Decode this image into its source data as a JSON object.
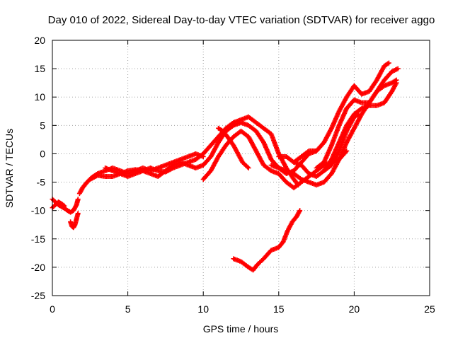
{
  "chart_data": {
    "type": "scatter",
    "title": "Day 010 of 2022, Sidereal Day-to-day VTEC variation (SDTVAR) for receiver aggo",
    "xlabel": "GPS time / hours",
    "ylabel": "SDTVAR / TECUs",
    "xlim": [
      0,
      25
    ],
    "ylim": [
      -25,
      20
    ],
    "x_ticks": [
      0,
      5,
      10,
      15,
      20,
      25
    ],
    "y_ticks": [
      -25,
      -20,
      -15,
      -10,
      -5,
      0,
      5,
      10,
      15,
      20
    ],
    "x_tick_labels": [
      "0",
      "5",
      "10",
      "15",
      "20",
      "25"
    ],
    "y_tick_labels": [
      "-25",
      "-20",
      "-15",
      "-10",
      "-5",
      "0",
      "5",
      "10",
      "15",
      "20"
    ],
    "grid": true,
    "marker": "+",
    "colors": {
      "series": "#ff0000",
      "grid": "#a0a0a0",
      "axis": "#000000"
    },
    "series": [
      {
        "points": [
          [
            0.0,
            -8.0
          ],
          [
            0.2,
            -8.5
          ],
          [
            0.4,
            -9.0
          ],
          [
            0.6,
            -9.3
          ],
          [
            0.8,
            -9.6
          ],
          [
            1.0,
            -10.0
          ],
          [
            1.2,
            -10.3
          ],
          [
            1.4,
            -10.0
          ],
          [
            1.6,
            -9.0
          ],
          [
            1.7,
            -8.0
          ]
        ]
      },
      {
        "points": [
          [
            0.0,
            -9.5
          ],
          [
            0.2,
            -9.0
          ],
          [
            0.4,
            -8.5
          ],
          [
            0.6,
            -8.8
          ],
          [
            0.8,
            -9.2
          ]
        ]
      },
      {
        "points": [
          [
            1.2,
            -12.0
          ],
          [
            1.3,
            -12.8
          ],
          [
            1.4,
            -13.0
          ],
          [
            1.5,
            -12.5
          ],
          [
            1.6,
            -11.5
          ],
          [
            1.7,
            -10.5
          ]
        ]
      },
      {
        "points": [
          [
            1.8,
            -7.0
          ],
          [
            2.0,
            -6.0
          ],
          [
            2.3,
            -5.0
          ],
          [
            2.6,
            -4.2
          ],
          [
            3.0,
            -3.5
          ],
          [
            3.5,
            -3.0
          ],
          [
            4.0,
            -2.5
          ],
          [
            4.5,
            -3.0
          ],
          [
            5.0,
            -3.5
          ],
          [
            5.5,
            -3.0
          ],
          [
            6.0,
            -2.5
          ],
          [
            6.5,
            -3.0
          ],
          [
            7.0,
            -2.5
          ],
          [
            7.5,
            -2.0
          ],
          [
            8.0,
            -1.5
          ],
          [
            8.5,
            -1.0
          ],
          [
            9.0,
            -0.5
          ],
          [
            9.5,
            0.0
          ],
          [
            10.0,
            -0.5
          ]
        ]
      },
      {
        "points": [
          [
            2.5,
            -4.5
          ],
          [
            3.0,
            -3.8
          ],
          [
            3.5,
            -4.0
          ],
          [
            4.0,
            -4.0
          ],
          [
            4.5,
            -3.5
          ],
          [
            5.0,
            -3.0
          ],
          [
            5.5,
            -2.8
          ],
          [
            6.0,
            -3.0
          ],
          [
            6.5,
            -2.5
          ],
          [
            7.0,
            -3.0
          ],
          [
            7.5,
            -3.2
          ],
          [
            8.0,
            -2.5
          ],
          [
            8.5,
            -2.0
          ],
          [
            9.0,
            -1.5
          ],
          [
            9.5,
            -1.0
          ],
          [
            10.0,
            0.0
          ],
          [
            10.5,
            1.5
          ],
          [
            11.0,
            3.0
          ],
          [
            11.5,
            4.5
          ],
          [
            12.0,
            5.5
          ],
          [
            12.5,
            6.0
          ],
          [
            13.0,
            6.5
          ],
          [
            13.5,
            5.5
          ],
          [
            14.0,
            4.5
          ],
          [
            14.5,
            3.5
          ],
          [
            15.0,
            0.0
          ],
          [
            15.5,
            -2.5
          ],
          [
            16.0,
            -4.5
          ],
          [
            16.3,
            -5.5
          ]
        ]
      },
      {
        "points": [
          [
            3.5,
            -2.5
          ],
          [
            4.0,
            -3.0
          ],
          [
            4.5,
            -3.5
          ],
          [
            5.0,
            -4.0
          ],
          [
            5.5,
            -3.5
          ],
          [
            6.0,
            -3.0
          ],
          [
            6.5,
            -3.5
          ],
          [
            7.0,
            -4.0
          ],
          [
            7.5,
            -3.0
          ],
          [
            8.0,
            -2.0
          ],
          [
            8.5,
            -1.5
          ],
          [
            9.0,
            -2.0
          ],
          [
            9.5,
            -2.5
          ],
          [
            10.0,
            -2.0
          ],
          [
            10.5,
            -0.5
          ],
          [
            11.0,
            2.0
          ],
          [
            11.5,
            4.0
          ],
          [
            12.0,
            5.0
          ],
          [
            12.5,
            5.5
          ],
          [
            13.0,
            5.0
          ],
          [
            13.5,
            4.0
          ],
          [
            14.0,
            2.0
          ],
          [
            14.5,
            -1.0
          ],
          [
            15.0,
            -2.5
          ],
          [
            15.5,
            -3.5
          ],
          [
            16.0,
            -3.0
          ],
          [
            16.5,
            -1.5
          ],
          [
            17.0,
            0.0
          ],
          [
            17.5,
            0.5
          ]
        ]
      },
      {
        "points": [
          [
            10.0,
            -4.5
          ],
          [
            10.5,
            -3.0
          ],
          [
            11.0,
            -0.5
          ],
          [
            11.5,
            1.5
          ],
          [
            12.0,
            3.0
          ],
          [
            12.5,
            4.0
          ],
          [
            13.0,
            3.0
          ],
          [
            13.5,
            0.5
          ],
          [
            14.0,
            -2.0
          ],
          [
            14.5,
            -3.0
          ],
          [
            15.0,
            -3.5
          ],
          [
            15.5,
            -5.0
          ],
          [
            16.0,
            -6.0
          ],
          [
            16.5,
            -5.0
          ],
          [
            17.0,
            -4.0
          ],
          [
            17.5,
            -3.0
          ],
          [
            18.0,
            -2.0
          ],
          [
            18.5,
            -1.5
          ],
          [
            19.0,
            -1.0
          ],
          [
            19.5,
            0.5
          ]
        ]
      },
      {
        "points": [
          [
            11.0,
            4.5
          ],
          [
            11.3,
            4.0
          ],
          [
            11.6,
            3.0
          ],
          [
            12.0,
            1.5
          ],
          [
            12.3,
            0.0
          ],
          [
            12.6,
            -1.5
          ],
          [
            13.0,
            -2.5
          ]
        ]
      },
      {
        "points": [
          [
            12.0,
            -18.5
          ],
          [
            12.5,
            -19.0
          ],
          [
            13.0,
            -20.0
          ],
          [
            13.3,
            -20.5
          ],
          [
            13.6,
            -19.5
          ],
          [
            14.0,
            -18.5
          ],
          [
            14.5,
            -17.0
          ],
          [
            15.0,
            -16.5
          ],
          [
            15.3,
            -15.5
          ],
          [
            15.6,
            -13.5
          ],
          [
            15.9,
            -12.0
          ],
          [
            16.2,
            -11.0
          ],
          [
            16.4,
            -10.0
          ]
        ]
      },
      {
        "points": [
          [
            14.5,
            -2.0
          ],
          [
            15.0,
            -2.5
          ],
          [
            15.5,
            -3.0
          ],
          [
            16.0,
            -3.5
          ],
          [
            16.5,
            -4.5
          ],
          [
            17.0,
            -5.0
          ],
          [
            17.5,
            -5.5
          ],
          [
            18.0,
            -5.0
          ],
          [
            18.5,
            -3.5
          ],
          [
            19.0,
            -1.0
          ],
          [
            19.5,
            2.0
          ],
          [
            20.0,
            4.5
          ],
          [
            20.5,
            7.0
          ],
          [
            21.0,
            9.0
          ],
          [
            21.5,
            11.0
          ],
          [
            22.0,
            12.0
          ],
          [
            22.5,
            12.5
          ],
          [
            22.8,
            13.0
          ]
        ]
      },
      {
        "points": [
          [
            15.0,
            -0.5
          ],
          [
            15.5,
            -0.5
          ],
          [
            16.0,
            -1.5
          ],
          [
            16.5,
            -2.0
          ],
          [
            17.0,
            -3.5
          ],
          [
            17.5,
            -4.0
          ],
          [
            18.0,
            -3.0
          ],
          [
            18.5,
            -1.0
          ],
          [
            19.0,
            2.0
          ],
          [
            19.5,
            5.0
          ],
          [
            20.0,
            7.0
          ],
          [
            20.5,
            8.0
          ],
          [
            21.0,
            8.5
          ],
          [
            21.5,
            8.5
          ],
          [
            22.0,
            9.0
          ],
          [
            22.5,
            11.0
          ],
          [
            22.8,
            12.5
          ]
        ]
      },
      {
        "points": [
          [
            16.0,
            -1.5
          ],
          [
            16.5,
            -0.5
          ],
          [
            17.0,
            0.5
          ],
          [
            17.5,
            0.5
          ],
          [
            18.0,
            2.0
          ],
          [
            18.5,
            4.5
          ],
          [
            19.0,
            7.5
          ],
          [
            19.5,
            10.0
          ],
          [
            20.0,
            12.0
          ],
          [
            20.5,
            10.5
          ],
          [
            21.0,
            11.0
          ],
          [
            21.5,
            13.0
          ],
          [
            22.0,
            15.5
          ],
          [
            22.3,
            16.0
          ]
        ]
      },
      {
        "points": [
          [
            17.5,
            -2.5
          ],
          [
            18.0,
            -1.5
          ],
          [
            18.5,
            1.5
          ],
          [
            19.0,
            5.0
          ],
          [
            19.5,
            8.0
          ],
          [
            20.0,
            9.5
          ],
          [
            20.5,
            9.0
          ],
          [
            21.0,
            9.0
          ],
          [
            21.5,
            11.0
          ],
          [
            22.0,
            13.0
          ],
          [
            22.5,
            14.5
          ],
          [
            22.9,
            15.0
          ]
        ]
      },
      {
        "points": [
          [
            18.0,
            -3.0
          ],
          [
            18.5,
            -2.0
          ],
          [
            19.0,
            0.5
          ],
          [
            19.5,
            4.0
          ],
          [
            20.0,
            6.5
          ],
          [
            20.3,
            7.0
          ]
        ]
      }
    ]
  }
}
